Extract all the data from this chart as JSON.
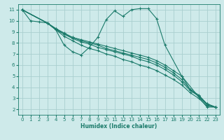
{
  "xlabel": "Humidex (Indice chaleur)",
  "bg_color": "#ceeaea",
  "grid_color": "#aacfcf",
  "line_color": "#1a7a6a",
  "xlim": [
    -0.5,
    23.5
  ],
  "ylim": [
    1.5,
    11.5
  ],
  "xticks": [
    0,
    1,
    2,
    3,
    4,
    5,
    6,
    7,
    8,
    9,
    10,
    11,
    12,
    13,
    14,
    15,
    16,
    17,
    18,
    19,
    20,
    21,
    22,
    23
  ],
  "yticks": [
    2,
    3,
    4,
    5,
    6,
    7,
    8,
    9,
    10,
    11
  ],
  "lines": [
    {
      "x": [
        0,
        1,
        2,
        3,
        4,
        5,
        6,
        7,
        8,
        9,
        10,
        11,
        12,
        13,
        14,
        15,
        16,
        17,
        19,
        22,
        23
      ],
      "y": [
        11,
        10,
        9.9,
        9.8,
        9.2,
        7.8,
        7.2,
        6.9,
        7.6,
        8.5,
        10.1,
        10.9,
        10.4,
        11.0,
        11.1,
        11.1,
        10.2,
        7.8,
        5.0,
        2.2,
        2.2
      ]
    },
    {
      "x": [
        0,
        3,
        4,
        5,
        6,
        7,
        8,
        9,
        10,
        11,
        12,
        13,
        14,
        15,
        16,
        17,
        18,
        19,
        20,
        21,
        22,
        23
      ],
      "y": [
        11,
        9.8,
        9.2,
        8.8,
        8.5,
        8.3,
        8.1,
        7.9,
        7.7,
        7.5,
        7.3,
        7.1,
        6.9,
        6.7,
        6.4,
        6.0,
        5.5,
        5.0,
        3.8,
        3.3,
        2.5,
        2.2
      ]
    },
    {
      "x": [
        0,
        3,
        4,
        5,
        6,
        7,
        8,
        9,
        10,
        11,
        12,
        13,
        14,
        15,
        16,
        17,
        18,
        19,
        20,
        21,
        22,
        23
      ],
      "y": [
        11,
        9.8,
        9.3,
        8.9,
        8.5,
        8.2,
        8.0,
        7.8,
        7.5,
        7.3,
        7.1,
        6.9,
        6.7,
        6.5,
        6.2,
        5.8,
        5.3,
        4.7,
        3.8,
        3.2,
        2.5,
        2.2
      ]
    },
    {
      "x": [
        0,
        3,
        4,
        5,
        6,
        7,
        8,
        9,
        10,
        11,
        12,
        13,
        14,
        15,
        16,
        17,
        18,
        19,
        20,
        21,
        22,
        23
      ],
      "y": [
        11,
        9.8,
        9.3,
        8.8,
        8.4,
        8.1,
        7.9,
        7.6,
        7.4,
        7.2,
        7.0,
        6.8,
        6.5,
        6.3,
        6.0,
        5.6,
        5.1,
        4.5,
        3.7,
        3.2,
        2.4,
        2.2
      ]
    },
    {
      "x": [
        0,
        3,
        4,
        5,
        6,
        7,
        8,
        9,
        10,
        11,
        12,
        13,
        14,
        15,
        16,
        17,
        18,
        19,
        20,
        21,
        22,
        23
      ],
      "y": [
        11,
        9.8,
        9.2,
        8.6,
        8.2,
        7.8,
        7.5,
        7.3,
        7.0,
        6.8,
        6.5,
        6.3,
        6.0,
        5.8,
        5.5,
        5.1,
        4.7,
        4.2,
        3.5,
        3.0,
        2.3,
        2.2
      ]
    }
  ]
}
